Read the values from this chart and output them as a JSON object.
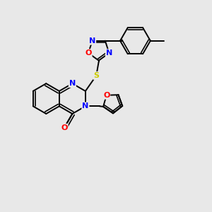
{
  "background_color": "#e8e8e8",
  "figsize": [
    3.0,
    3.0
  ],
  "dpi": 100,
  "bond_color": "#000000",
  "bond_width": 1.4,
  "atom_colors": {
    "N": "#0000ff",
    "O": "#ff0000",
    "S": "#cccc00",
    "C": "#000000"
  },
  "font_size": 7.5
}
